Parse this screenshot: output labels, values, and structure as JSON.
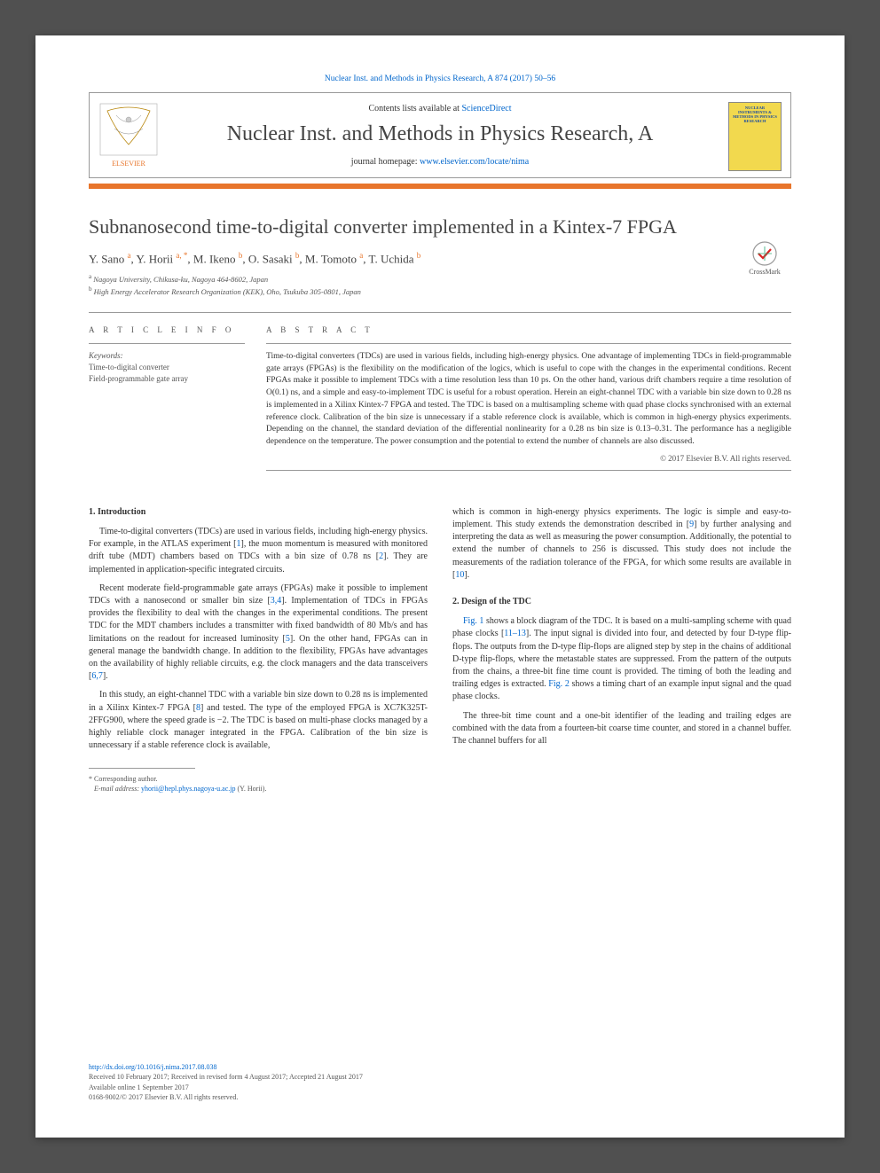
{
  "top_citation": "Nuclear Inst. and Methods in Physics Research, A 874 (2017) 50–56",
  "header": {
    "contents_prefix": "Contents lists available at ",
    "contents_link": "ScienceDirect",
    "journal_name": "Nuclear Inst. and Methods in Physics Research, A",
    "homepage_prefix": "journal homepage: ",
    "homepage_link": "www.elsevier.com/locate/nima",
    "publisher": "ELSEVIER",
    "thumb_title": "NUCLEAR INSTRUMENTS & METHODS IN PHYSICS RESEARCH"
  },
  "colors": {
    "orange": "#e8752b",
    "link": "#0066cc",
    "thumb_bg": "#f2d94e",
    "page_bg": "#ffffff",
    "outer_bg": "#505050"
  },
  "title": "Subnanosecond time-to-digital converter implemented in a Kintex-7 FPGA",
  "crossmark": "CrossMark",
  "authors_html": "Y. Sano <sup>a</sup>, Y. Horii <sup>a, *</sup>, M. Ikeno <sup>b</sup>, O. Sasaki <sup>b</sup>, M. Tomoto <sup>a</sup>, T. Uchida <sup>b</sup>",
  "affiliations": [
    {
      "mark": "a",
      "text": "Nagoya University, Chikusa-ku, Nagoya 464-8602, Japan"
    },
    {
      "mark": "b",
      "text": "High Energy Accelerator Research Organization (KEK), Oho, Tsukuba 305-0801, Japan"
    }
  ],
  "meta": {
    "article_info_head": "A R T I C L E   I N F O",
    "abstract_head": "A B S T R A C T",
    "keywords_label": "Keywords:",
    "keywords": [
      "Time-to-digital converter",
      "Field-programmable gate array"
    ]
  },
  "abstract": "Time-to-digital converters (TDCs) are used in various fields, including high-energy physics. One advantage of implementing TDCs in field-programmable gate arrays (FPGAs) is the flexibility on the modification of the logics, which is useful to cope with the changes in the experimental conditions. Recent FPGAs make it possible to implement TDCs with a time resolution less than 10 ps. On the other hand, various drift chambers require a time resolution of O(0.1) ns, and a simple and easy-to-implement TDC is useful for a robust operation. Herein an eight-channel TDC with a variable bin size down to 0.28 ns is implemented in a Xilinx Kintex-7 FPGA and tested. The TDC is based on a multisampling scheme with quad phase clocks synchronised with an external reference clock. Calibration of the bin size is unnecessary if a stable reference clock is available, which is common in high-energy physics experiments. Depending on the channel, the standard deviation of the differential nonlinearity for a 0.28 ns bin size is 0.13–0.31. The performance has a negligible dependence on the temperature. The power consumption and the potential to extend the number of channels are also discussed.",
  "abstract_copyright": "© 2017 Elsevier B.V. All rights reserved.",
  "sections": {
    "s1": {
      "heading": "1. Introduction",
      "p1": "Time-to-digital converters (TDCs) are used in various fields, including high-energy physics. For example, in the ATLAS experiment [1], the muon momentum is measured with monitored drift tube (MDT) chambers based on TDCs with a bin size of 0.78 ns [2]. They are implemented in application-specific integrated circuits.",
      "p2": "Recent moderate field-programmable gate arrays (FPGAs) make it possible to implement TDCs with a nanosecond or smaller bin size [3,4]. Implementation of TDCs in FPGAs provides the flexibility to deal with the changes in the experimental conditions. The present TDC for the MDT chambers includes a transmitter with fixed bandwidth of 80 Mb/s and has limitations on the readout for increased luminosity [5]. On the other hand, FPGAs can in general manage the bandwidth change. In addition to the flexibility, FPGAs have advantages on the availability of highly reliable circuits, e.g. the clock managers and the data transceivers [6,7].",
      "p3": "In this study, an eight-channel TDC with a variable bin size down to 0.28 ns is implemented in a Xilinx Kintex-7 FPGA [8] and tested. The type of the employed FPGA is XC7K325T-2FFG900, where the speed grade is −2. The TDC is based on multi-phase clocks managed by a highly reliable clock manager integrated in the FPGA. Calibration of the bin size is unnecessary if a stable reference clock is available,",
      "p3b": "which is common in high-energy physics experiments. The logic is simple and easy-to-implement. This study extends the demonstration described in [9] by further analysing and interpreting the data as well as measuring the power consumption. Additionally, the potential to extend the number of channels to 256 is discussed. This study does not include the measurements of the radiation tolerance of the FPGA, for which some results are available in [10]."
    },
    "s2": {
      "heading": "2. Design of the TDC",
      "p1": "Fig. 1 shows a block diagram of the TDC. It is based on a multi-sampling scheme with quad phase clocks [11–13]. The input signal is divided into four, and detected by four D-type flip-flops. The outputs from the D-type flip-flops are aligned step by step in the chains of additional D-type flip-flops, where the metastable states are suppressed. From the pattern of the outputs from the chains, a three-bit fine time count is provided. The timing of both the leading and trailing edges is extracted. Fig. 2 shows a timing chart of an example input signal and the quad phase clocks.",
      "p2": "The three-bit time count and a one-bit identifier of the leading and trailing edges are combined with the data from a fourteen-bit coarse time counter, and stored in a channel buffer. The channel buffers for all"
    }
  },
  "footnote": {
    "corr": "* Corresponding author.",
    "email_label": "E-mail address: ",
    "email": "yhorii@hepl.phys.nagoya-u.ac.jp",
    "email_suffix": " (Y. Horii)."
  },
  "bottom": {
    "doi": "http://dx.doi.org/10.1016/j.nima.2017.08.038",
    "history": "Received 10 February 2017; Received in revised form 4 August 2017; Accepted 21 August 2017",
    "online": "Available online 1 September 2017",
    "issn": "0168-9002/© 2017 Elsevier B.V. All rights reserved."
  }
}
